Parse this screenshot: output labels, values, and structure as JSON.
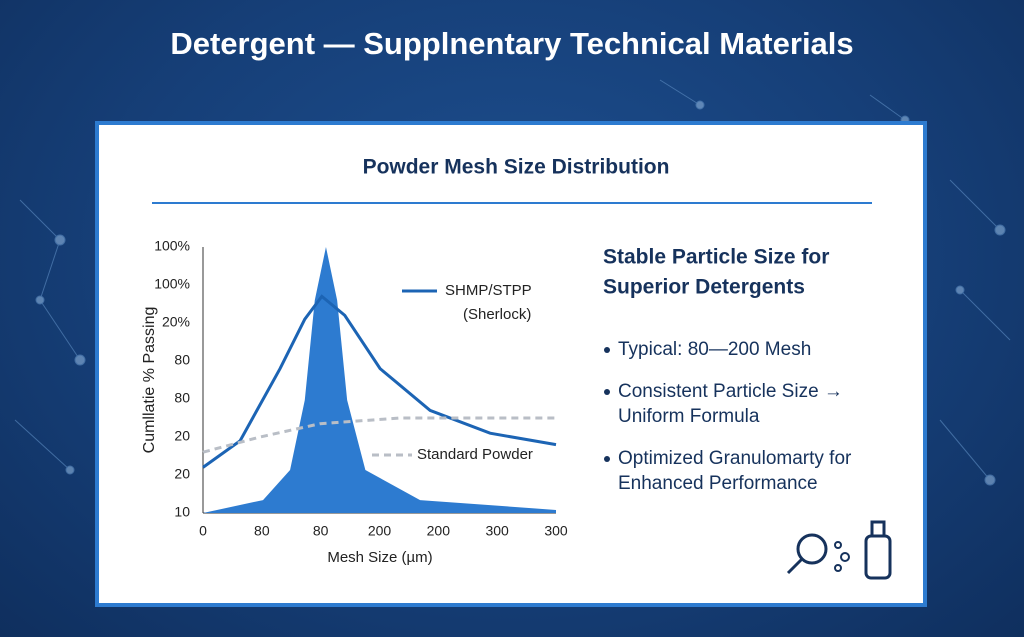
{
  "header": {
    "title": "Detergent — Supplnentary Technical Materials"
  },
  "chart_data": {
    "type": "area-line",
    "title": "Powder Mesh Size Distribution",
    "y_label": "Cumllatie % Passing",
    "x_label": "Mesh Size (µm)",
    "ytick_labels": [
      "10",
      "20",
      "20",
      "80",
      "80",
      "20%",
      "100%",
      "100%"
    ],
    "xtick_labels": [
      "0",
      "80",
      "80",
      "200",
      "200",
      "300",
      "300"
    ],
    "xlim": [
      0,
      6
    ],
    "ylim": [
      0,
      7
    ],
    "series": [
      {
        "name": null,
        "style": "area",
        "color": "#2d7bd0",
        "x": [
          0,
          1.02,
          1.48,
          1.73,
          1.9,
          2.09,
          2.28,
          2.45,
          2.76,
          3.69,
          6
        ],
        "values": [
          0,
          0.34,
          1.13,
          2.97,
          5.6,
          7,
          5.6,
          2.97,
          1.13,
          0.34,
          0.08
        ]
      },
      {
        "name": "SHMP/STPP",
        "name2": "(Sherlock)",
        "style": "line",
        "color": "#1c64b4",
        "x": [
          0,
          0.63,
          1.31,
          1.73,
          2.02,
          2.41,
          3.01,
          3.86,
          4.88,
          6
        ],
        "values": [
          1.2,
          1.9,
          3.8,
          5.1,
          5.7,
          5.2,
          3.8,
          2.7,
          2.1,
          1.8
        ]
      },
      {
        "name": "Standard Powder",
        "style": "dashed",
        "color": "#b9bec6",
        "x": [
          0,
          0.97,
          1.99,
          3.35,
          6
        ],
        "values": [
          1.6,
          2.0,
          2.35,
          2.5,
          2.5
        ]
      }
    ]
  },
  "panel": {
    "heading": [
      "Stable Particle Size for",
      "Superior Detergents"
    ],
    "bullets": [
      [
        "Typical: 80—200 Mesh"
      ],
      [
        "Consistent Particle Size →",
        "Uniform Formula"
      ],
      [
        "Optimized Granulomarty for",
        "Enhanced Performance"
      ]
    ]
  }
}
